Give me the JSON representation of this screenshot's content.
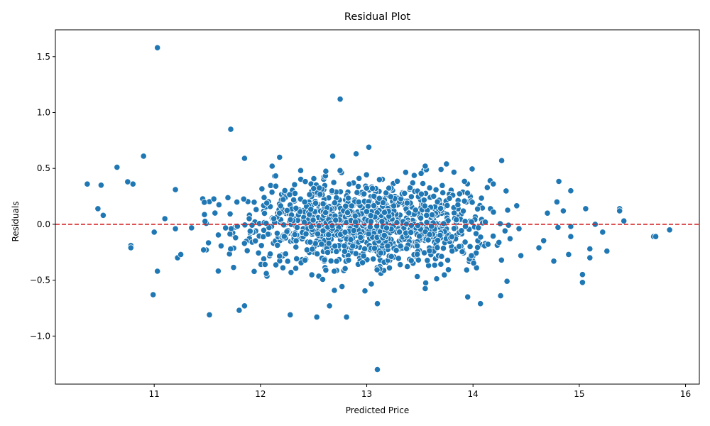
{
  "chart_data": {
    "type": "scatter",
    "title": "Residual Plot",
    "xlabel": "Predicted Price",
    "ylabel": "Residuals",
    "xlim": [
      10.07,
      16.13
    ],
    "ylim": [
      -1.43,
      1.74
    ],
    "xticks": [
      11,
      12,
      13,
      14,
      15,
      16
    ],
    "yticks": [
      -1.0,
      -0.5,
      0.0,
      0.5,
      1.0,
      1.5
    ],
    "xtick_labels": [
      "11",
      "12",
      "13",
      "14",
      "15",
      "16"
    ],
    "ytick_labels": [
      "−1.0",
      "−0.5",
      "0.0",
      "0.5",
      "1.0",
      "1.5"
    ],
    "grid": false,
    "reference_line": {
      "y": 0.0,
      "color": "#d62728",
      "style": "dashed"
    },
    "point_color": "#1f77b4",
    "outliers": [
      {
        "x": 11.03,
        "y": 1.58
      },
      {
        "x": 12.75,
        "y": 1.12
      },
      {
        "x": 11.72,
        "y": 0.85
      },
      {
        "x": 13.1,
        "y": -1.3
      },
      {
        "x": 10.37,
        "y": 0.36
      },
      {
        "x": 10.47,
        "y": 0.14
      },
      {
        "x": 10.5,
        "y": 0.35
      },
      {
        "x": 10.52,
        "y": 0.08
      },
      {
        "x": 10.65,
        "y": 0.51
      },
      {
        "x": 10.75,
        "y": 0.38
      },
      {
        "x": 10.78,
        "y": -0.19
      },
      {
        "x": 10.78,
        "y": -0.21
      },
      {
        "x": 10.8,
        "y": 0.36
      },
      {
        "x": 10.9,
        "y": 0.61
      },
      {
        "x": 11.0,
        "y": -0.07
      },
      {
        "x": 10.99,
        "y": -0.63
      },
      {
        "x": 11.03,
        "y": -0.42
      },
      {
        "x": 11.1,
        "y": 0.05
      },
      {
        "x": 11.2,
        "y": 0.31
      },
      {
        "x": 11.2,
        "y": -0.04
      },
      {
        "x": 11.22,
        "y": -0.3
      },
      {
        "x": 11.25,
        "y": -0.27
      },
      {
        "x": 11.52,
        "y": -0.81
      },
      {
        "x": 11.85,
        "y": -0.73
      },
      {
        "x": 11.8,
        "y": -0.77
      },
      {
        "x": 12.28,
        "y": -0.81
      },
      {
        "x": 12.53,
        "y": -0.83
      },
      {
        "x": 12.81,
        "y": -0.83
      },
      {
        "x": 12.65,
        "y": -0.73
      },
      {
        "x": 13.1,
        "y": -0.71
      },
      {
        "x": 14.07,
        "y": -0.71
      },
      {
        "x": 14.26,
        "y": -0.64
      },
      {
        "x": 13.95,
        "y": -0.65
      },
      {
        "x": 15.03,
        "y": -0.45
      },
      {
        "x": 15.03,
        "y": -0.52
      },
      {
        "x": 15.1,
        "y": -0.22
      },
      {
        "x": 15.1,
        "y": -0.3
      },
      {
        "x": 15.15,
        "y": 0.0
      },
      {
        "x": 15.22,
        "y": -0.07
      },
      {
        "x": 15.26,
        "y": -0.24
      },
      {
        "x": 15.38,
        "y": 0.14
      },
      {
        "x": 15.38,
        "y": 0.12
      },
      {
        "x": 15.42,
        "y": 0.03
      },
      {
        "x": 15.7,
        "y": -0.11
      },
      {
        "x": 15.72,
        "y": -0.11
      },
      {
        "x": 15.85,
        "y": -0.05
      },
      {
        "x": 14.92,
        "y": 0.3
      },
      {
        "x": 15.06,
        "y": 0.14
      },
      {
        "x": 14.9,
        "y": -0.27
      },
      {
        "x": 14.92,
        "y": -0.11
      },
      {
        "x": 14.92,
        "y": -0.02
      },
      {
        "x": 14.85,
        "y": 0.12
      },
      {
        "x": 14.79,
        "y": 0.2
      },
      {
        "x": 14.76,
        "y": -0.33
      },
      {
        "x": 14.7,
        "y": 0.1
      },
      {
        "x": 14.62,
        "y": -0.21
      },
      {
        "x": 14.45,
        "y": -0.28
      },
      {
        "x": 14.32,
        "y": -0.51
      },
      {
        "x": 14.27,
        "y": 0.57
      },
      {
        "x": 13.02,
        "y": 0.69
      },
      {
        "x": 12.9,
        "y": 0.63
      },
      {
        "x": 12.68,
        "y": 0.61
      },
      {
        "x": 12.18,
        "y": 0.6
      },
      {
        "x": 11.85,
        "y": 0.59
      },
      {
        "x": 13.75,
        "y": 0.54
      },
      {
        "x": 13.55,
        "y": 0.52
      },
      {
        "x": 12.11,
        "y": 0.52
      }
    ],
    "cluster_points": 1200,
    "cluster_center_x": 13.0,
    "cluster_sd_x": 0.6,
    "residual_sd": 0.2
  }
}
